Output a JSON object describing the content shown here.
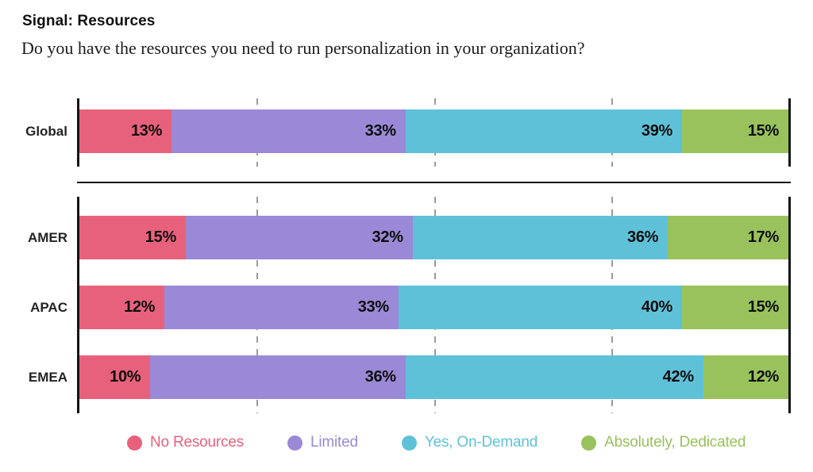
{
  "header": {
    "title": "Signal: Resources",
    "subtitle": "Do you have the resources you need to run personalization in your organization?"
  },
  "chart_data": {
    "type": "bar",
    "orientation": "horizontal",
    "stacked": true,
    "unit": "%",
    "xlim": [
      0,
      100
    ],
    "gridlines_percent": [
      25,
      50,
      75
    ],
    "grid_color": "#9b9b9b",
    "axis_color": "#151515",
    "value_label_color": "#0d0d0d",
    "legend_position": "bottom",
    "legend": [
      {
        "label": "No Resources",
        "color": "#E8617C"
      },
      {
        "label": "Limited",
        "color": "#9A89D6"
      },
      {
        "label": "Yes, On-Demand",
        "color": "#5FC1D8"
      },
      {
        "label": "Absolutely, Dedicated",
        "color": "#99C25C"
      }
    ],
    "groups": [
      {
        "name": "global",
        "rows": [
          {
            "label": "Global",
            "values": [
              13,
              33,
              39,
              15
            ]
          }
        ]
      },
      {
        "name": "regions",
        "rows": [
          {
            "label": "AMER",
            "values": [
              15,
              32,
              36,
              17
            ]
          },
          {
            "label": "APAC",
            "values": [
              12,
              33,
              40,
              15
            ]
          },
          {
            "label": "EMEA",
            "values": [
              10,
              36,
              42,
              12
            ]
          }
        ]
      }
    ]
  }
}
